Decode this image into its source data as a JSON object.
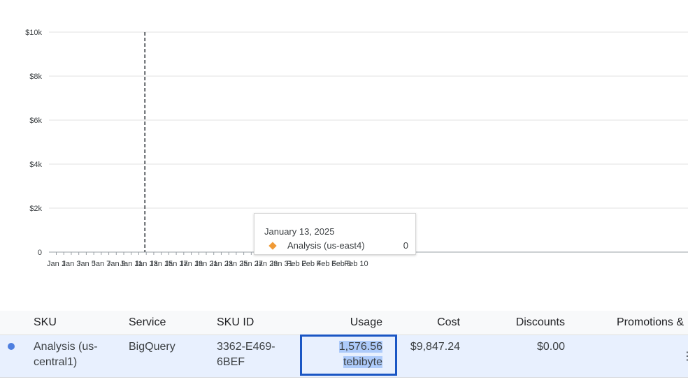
{
  "chart_data": {
    "type": "line",
    "title": "",
    "xlabel": "",
    "ylabel": "",
    "ylim": [
      0,
      10000
    ],
    "y_ticks": [
      "$10k",
      "$8k",
      "$6k",
      "$4k",
      "$2k",
      "0"
    ],
    "y_tick_values": [
      10000,
      8000,
      6000,
      4000,
      2000,
      0
    ],
    "x_ticks": [
      "Jan 1",
      "Jan 3",
      "Jan 5",
      "Jan 7",
      "Jan 9",
      "Jan 11",
      "Jan 13",
      "Jan 15",
      "Jan 17",
      "Jan 19",
      "Jan 21",
      "Jan 23",
      "Jan 25",
      "Jan 27",
      "Jan 29",
      "Jan 31",
      "Feb 2",
      "Feb 4",
      "Feb 6",
      "Feb 8",
      "Feb 10"
    ],
    "grid": true,
    "hover_date": "Jan 13",
    "series": [
      {
        "name": "Analysis (us-east4)",
        "color": "#f09a36",
        "x": [
          "Jan 13"
        ],
        "values": [
          0
        ]
      }
    ]
  },
  "tooltip": {
    "date": "January 13, 2025",
    "series_name": "Analysis (us-east4)",
    "value": "0",
    "marker_color": "#f09a36"
  },
  "table": {
    "columns": {
      "sku": "SKU",
      "service": "Service",
      "sku_id": "SKU ID",
      "usage": "Usage",
      "cost": "Cost",
      "discounts": "Discounts",
      "promotions": "Promotions &"
    },
    "rows": [
      {
        "dot_color": "#4e7fe0",
        "sku_line1": "Analysis (us-",
        "sku_line2": "central1)",
        "service": "BigQuery",
        "sku_id_line1": "3362-E469-",
        "sku_id_line2": "6BEF",
        "usage_value": "1,576.56",
        "usage_unit": "tebibyte",
        "cost": "$9,847.24",
        "discounts": "$0.00"
      }
    ]
  }
}
